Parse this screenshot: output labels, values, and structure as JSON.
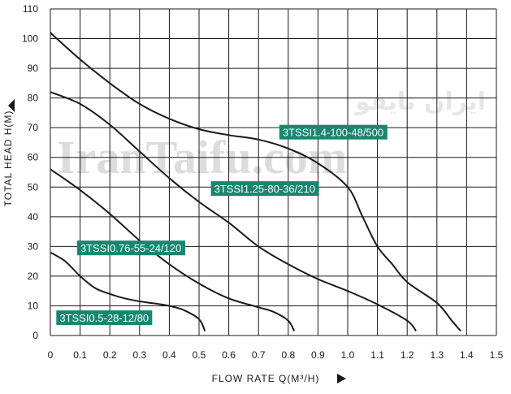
{
  "watermark": {
    "latin": "IranTaifu.com",
    "persian": "ایران تایفو"
  },
  "colors": {
    "curve": "#1a1a1a",
    "grid": "#1a1a1a",
    "label_bg": "#17876f",
    "label_text": "#ffffff"
  },
  "chart_data": {
    "type": "line",
    "title": "",
    "xlabel": "FLOW RATE Q(M³/H)",
    "ylabel": "TOTAL HEAD H(M)",
    "xlim": [
      0,
      1.5
    ],
    "ylim": [
      0,
      110
    ],
    "x_ticks": [
      "0",
      "0.1",
      "0.2",
      "0.3",
      "0.4",
      "0.5",
      "0.6",
      "0.7",
      "0.8",
      "0.9",
      "1.0",
      "1.1",
      "1.2",
      "1.3",
      "1.4",
      "1.5"
    ],
    "y_ticks": [
      "0",
      "10",
      "20",
      "30",
      "40",
      "50",
      "60",
      "70",
      "80",
      "90",
      "100",
      "110"
    ],
    "grid": true,
    "series": [
      {
        "name": "3TSSI0.5-28-12/80",
        "points": [
          [
            0,
            28
          ],
          [
            0.05,
            25
          ],
          [
            0.1,
            20
          ],
          [
            0.15,
            16
          ],
          [
            0.2,
            14
          ],
          [
            0.25,
            12.5
          ],
          [
            0.3,
            11.5
          ],
          [
            0.35,
            10.8
          ],
          [
            0.4,
            10
          ],
          [
            0.45,
            8.5
          ],
          [
            0.5,
            5.5
          ],
          [
            0.52,
            1.5
          ]
        ]
      },
      {
        "name": "3TSSI0.76-55-24/120",
        "points": [
          [
            0,
            56
          ],
          [
            0.1,
            49
          ],
          [
            0.2,
            41
          ],
          [
            0.3,
            32
          ],
          [
            0.4,
            24
          ],
          [
            0.5,
            17.5
          ],
          [
            0.6,
            12.5
          ],
          [
            0.7,
            9.5
          ],
          [
            0.75,
            8
          ],
          [
            0.8,
            5
          ],
          [
            0.82,
            1.5
          ]
        ]
      },
      {
        "name": "3TSSI1.25-80-36/210",
        "points": [
          [
            0,
            82
          ],
          [
            0.1,
            78
          ],
          [
            0.2,
            71
          ],
          [
            0.3,
            62
          ],
          [
            0.4,
            53
          ],
          [
            0.5,
            45
          ],
          [
            0.6,
            38
          ],
          [
            0.7,
            30
          ],
          [
            0.8,
            24
          ],
          [
            0.9,
            19
          ],
          [
            1.0,
            15
          ],
          [
            1.1,
            10.5
          ],
          [
            1.2,
            5
          ],
          [
            1.23,
            1.5
          ]
        ]
      },
      {
        "name": "3TSSI1.4-100-48/500",
        "points": [
          [
            0,
            102
          ],
          [
            0.1,
            93
          ],
          [
            0.2,
            85
          ],
          [
            0.3,
            78
          ],
          [
            0.4,
            73
          ],
          [
            0.5,
            69.5
          ],
          [
            0.6,
            67.5
          ],
          [
            0.7,
            66
          ],
          [
            0.8,
            63
          ],
          [
            0.9,
            58
          ],
          [
            1.0,
            50
          ],
          [
            1.05,
            40
          ],
          [
            1.1,
            30
          ],
          [
            1.15,
            24
          ],
          [
            1.2,
            18
          ],
          [
            1.3,
            11
          ],
          [
            1.35,
            5
          ],
          [
            1.38,
            1.5
          ]
        ]
      }
    ]
  }
}
